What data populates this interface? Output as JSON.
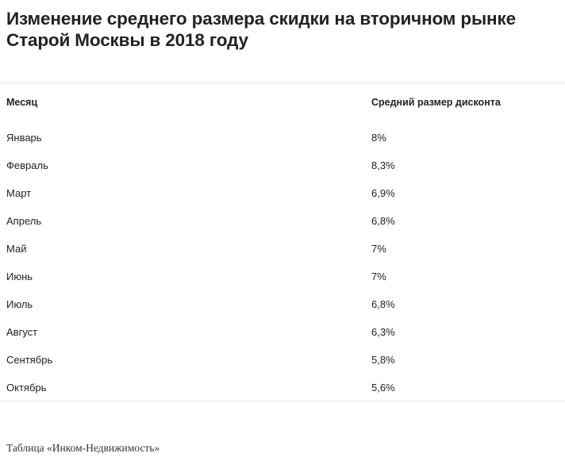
{
  "title": "Изменение среднего размера скидки на вторичном рынке Старой Москвы в 2018 году",
  "table": {
    "columns": [
      "Месяц",
      "Средний размер дисконта"
    ],
    "rows": [
      [
        "Январь",
        "8%"
      ],
      [
        "Февраль",
        "8,3%"
      ],
      [
        "Март",
        "6,9%"
      ],
      [
        "Апрель",
        "6,8%"
      ],
      [
        "Май",
        "7%"
      ],
      [
        "Июнь",
        "7%"
      ],
      [
        "Июль",
        "6,8%"
      ],
      [
        "Август",
        "6,3%"
      ],
      [
        "Сентябрь",
        "5,8%"
      ],
      [
        "Октябрь",
        "5,6%"
      ]
    ]
  },
  "source": "Таблица «Инком-Недвижимость»"
}
